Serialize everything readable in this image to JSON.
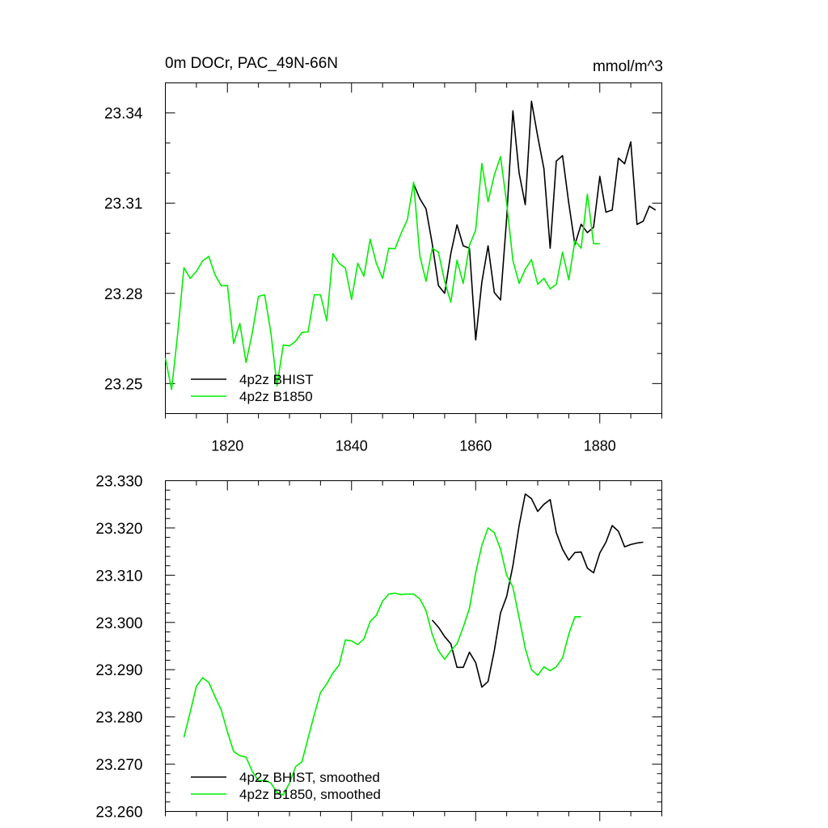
{
  "chart_data": [
    {
      "type": "line",
      "title": "0m DOCr, PAC_49N-66N",
      "units": "mmol/m^3",
      "xlim": [
        1810,
        1890
      ],
      "ylim": [
        23.24,
        23.35
      ],
      "x_ticks": [
        1820,
        1840,
        1860,
        1880
      ],
      "x_tick_labels": [
        "1820",
        "1840",
        "1860",
        "1880"
      ],
      "y_ticks": [
        23.25,
        23.28,
        23.31,
        23.34
      ],
      "y_tick_labels": [
        "23.25",
        "23.28",
        "23.31",
        "23.34"
      ],
      "legend_position": "bottom-left",
      "series": [
        {
          "name": "4p2z BHIST",
          "color": "#000000",
          "x": [
            1850,
            1851,
            1852,
            1853,
            1854,
            1855,
            1856,
            1857,
            1858,
            1859,
            1860,
            1861,
            1862,
            1863,
            1864,
            1865,
            1866,
            1867,
            1868,
            1869,
            1870,
            1871,
            1872,
            1873,
            1874,
            1875,
            1876,
            1877,
            1878,
            1879,
            1880,
            1881,
            1882,
            1883,
            1884,
            1885,
            1886,
            1887,
            1888,
            1889
          ],
          "y": [
            23.3164,
            23.3115,
            23.3081,
            23.2966,
            23.2826,
            23.28,
            23.2932,
            23.3028,
            23.2958,
            23.295,
            23.2645,
            23.2837,
            23.2958,
            23.2803,
            23.2778,
            23.305,
            23.3407,
            23.32,
            23.3095,
            23.3439,
            23.3322,
            23.3214,
            23.295,
            23.324,
            23.3258,
            23.31,
            23.2962,
            23.303,
            23.3002,
            23.302,
            23.3189,
            23.307,
            23.3077,
            23.325,
            23.3231,
            23.3304,
            23.3029,
            23.304,
            23.309,
            23.3077
          ]
        },
        {
          "name": "4p2z B1850",
          "color": "#00ee00",
          "x": [
            1810,
            1811,
            1812,
            1813,
            1814,
            1815,
            1816,
            1817,
            1818,
            1819,
            1820,
            1821,
            1822,
            1823,
            1824,
            1825,
            1826,
            1827,
            1828,
            1829,
            1830,
            1831,
            1832,
            1833,
            1834,
            1835,
            1836,
            1837,
            1838,
            1839,
            1840,
            1841,
            1842,
            1843,
            1844,
            1845,
            1846,
            1847,
            1848,
            1849,
            1850,
            1851,
            1852,
            1853,
            1854,
            1855,
            1856,
            1857,
            1858,
            1859,
            1860,
            1861,
            1862,
            1863,
            1864,
            1865,
            1866,
            1867,
            1868,
            1869,
            1870,
            1871,
            1872,
            1873,
            1874,
            1875,
            1876,
            1877,
            1878,
            1879,
            1880
          ],
          "y": [
            23.2585,
            23.248,
            23.2667,
            23.2885,
            23.285,
            23.2873,
            23.2908,
            23.2923,
            23.2862,
            23.2825,
            23.2826,
            23.2633,
            23.27,
            23.257,
            23.2667,
            23.279,
            23.2795,
            23.2669,
            23.2492,
            23.2628,
            23.2625,
            23.2641,
            23.267,
            23.2672,
            23.2795,
            23.2795,
            23.2709,
            23.2932,
            23.29,
            23.2884,
            23.278,
            23.29,
            23.2857,
            23.298,
            23.29,
            23.285,
            23.295,
            23.2948,
            23.3,
            23.3045,
            23.317,
            23.2925,
            23.284,
            23.295,
            23.2937,
            23.284,
            23.277,
            23.291,
            23.2833,
            23.296,
            23.301,
            23.3232,
            23.3105,
            23.3193,
            23.3255,
            23.31,
            23.291,
            23.2833,
            23.288,
            23.2912,
            23.283,
            23.285,
            23.2815,
            23.283,
            23.2937,
            23.2845,
            23.2975,
            23.295,
            23.313,
            23.2965,
            23.2965
          ]
        }
      ]
    },
    {
      "type": "line",
      "title": "",
      "xlim": [
        1810,
        1890
      ],
      "ylim": [
        23.26,
        23.33
      ],
      "x_ticks": [
        1820,
        1840,
        1860,
        1880
      ],
      "y_ticks": [
        23.26,
        23.27,
        23.28,
        23.29,
        23.3,
        23.31,
        23.32,
        23.33
      ],
      "y_tick_labels": [
        "23.260",
        "23.270",
        "23.280",
        "23.290",
        "23.300",
        "23.310",
        "23.320",
        "23.330"
      ],
      "legend_position": "bottom-left",
      "series": [
        {
          "name": "4p2z BHIST, smoothed",
          "color": "#000000",
          "x": [
            1853,
            1854,
            1855,
            1856,
            1857,
            1858,
            1859,
            1860,
            1861,
            1862,
            1863,
            1864,
            1865,
            1866,
            1867,
            1868,
            1869,
            1870,
            1871,
            1872,
            1873,
            1874,
            1875,
            1876,
            1877,
            1878,
            1879,
            1880,
            1881,
            1882,
            1883,
            1884,
            1885,
            1886,
            1887
          ],
          "y": [
            23.3005,
            23.299,
            23.297,
            23.2955,
            23.2905,
            23.2905,
            23.2937,
            23.2915,
            23.2863,
            23.2875,
            23.294,
            23.302,
            23.3055,
            23.312,
            23.3205,
            23.3272,
            23.3262,
            23.3235,
            23.325,
            23.326,
            23.319,
            23.3155,
            23.3132,
            23.3148,
            23.3149,
            23.3115,
            23.3105,
            23.3147,
            23.317,
            23.3205,
            23.3193,
            23.316,
            23.3165,
            23.3168,
            23.317
          ]
        },
        {
          "name": "4p2z B1850, smoothed",
          "color": "#00ee00",
          "x": [
            1813,
            1814,
            1815,
            1816,
            1817,
            1818,
            1819,
            1820,
            1821,
            1822,
            1823,
            1824,
            1825,
            1826,
            1827,
            1828,
            1829,
            1830,
            1831,
            1832,
            1833,
            1834,
            1835,
            1836,
            1837,
            1838,
            1839,
            1840,
            1841,
            1842,
            1843,
            1844,
            1845,
            1846,
            1847,
            1848,
            1849,
            1850,
            1851,
            1852,
            1853,
            1854,
            1855,
            1856,
            1857,
            1858,
            1859,
            1860,
            1861,
            1862,
            1863,
            1864,
            1865,
            1866,
            1867,
            1868,
            1869,
            1870,
            1871,
            1872,
            1873,
            1874,
            1875,
            1876,
            1877
          ],
          "y": [
            23.2757,
            23.281,
            23.2865,
            23.2883,
            23.2873,
            23.2843,
            23.2815,
            23.2768,
            23.2727,
            23.2718,
            23.2715,
            23.2685,
            23.2665,
            23.2666,
            23.266,
            23.264,
            23.2635,
            23.266,
            23.2695,
            23.2705,
            23.2755,
            23.2805,
            23.2852,
            23.287,
            23.2893,
            23.291,
            23.2963,
            23.2961,
            23.2953,
            23.2965,
            23.3002,
            23.3015,
            23.3045,
            23.306,
            23.3062,
            23.3059,
            23.306,
            23.306,
            23.305,
            23.3025,
            23.2975,
            23.294,
            23.2922,
            23.294,
            23.2955,
            23.299,
            23.303,
            23.3105,
            23.3163,
            23.32,
            23.319,
            23.3155,
            23.31,
            23.3075,
            23.301,
            23.2945,
            23.29,
            23.2888,
            23.2906,
            23.2898,
            23.2906,
            23.2925,
            23.2975,
            23.3012,
            23.3012
          ]
        }
      ]
    }
  ]
}
